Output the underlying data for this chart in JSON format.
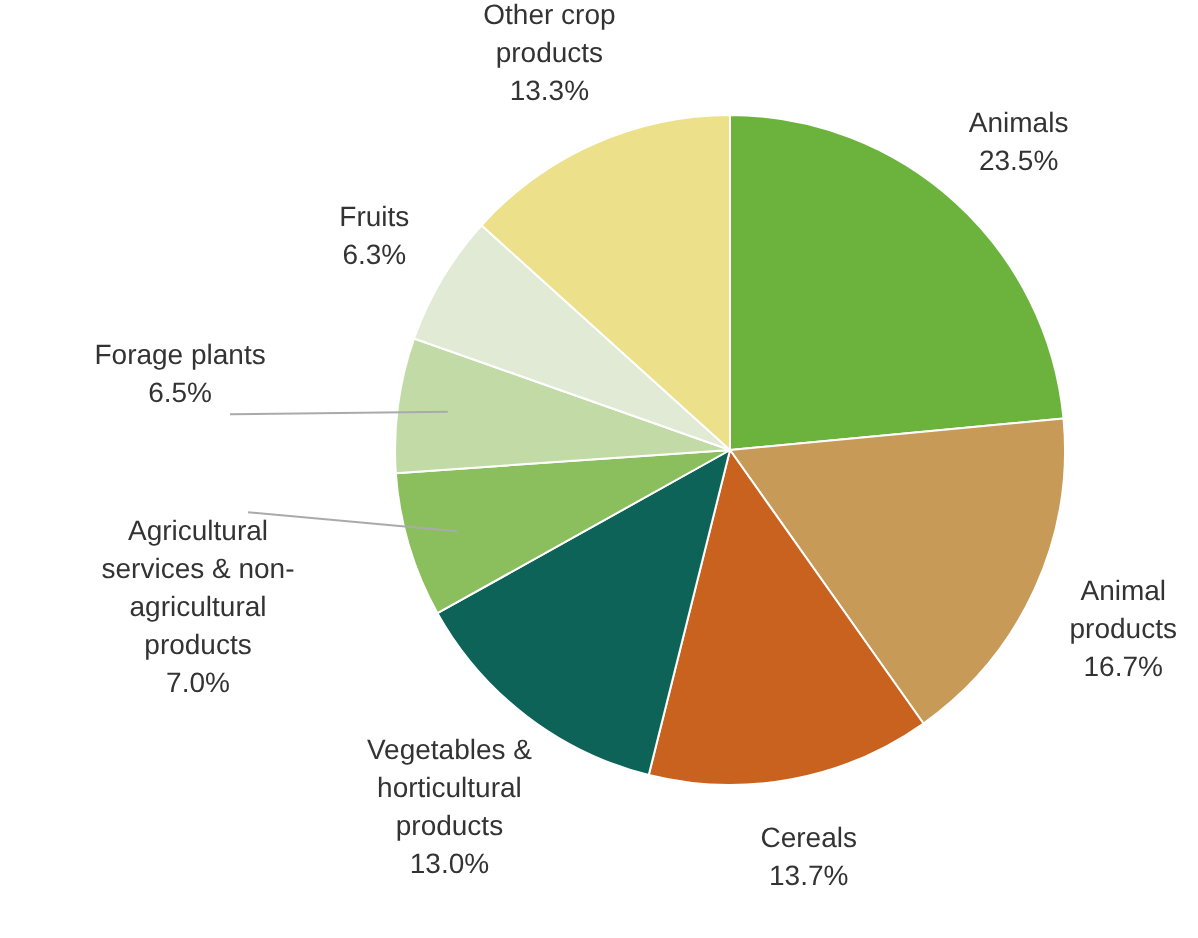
{
  "chart_data": {
    "type": "pie",
    "categories": [
      "Animals",
      "Animal products",
      "Cereals",
      "Vegetables & horticultural products",
      "Agricultural services & non-agricultural products",
      "Forage plants",
      "Fruits",
      "Other crop products"
    ],
    "values": [
      23.5,
      16.7,
      13.7,
      13.0,
      7.0,
      6.5,
      6.3,
      13.3
    ],
    "value_labels": [
      "23.5%",
      "16.7%",
      "13.7%",
      "13.0%",
      "7.0%",
      "6.5%",
      "6.3%",
      "13.3%"
    ],
    "colors": [
      "#6bb33d",
      "#c89a58",
      "#c8621e",
      "#0e6358",
      "#8bbf5e",
      "#c2dba6",
      "#e0ead4",
      "#ede08a"
    ],
    "legend": false
  }
}
